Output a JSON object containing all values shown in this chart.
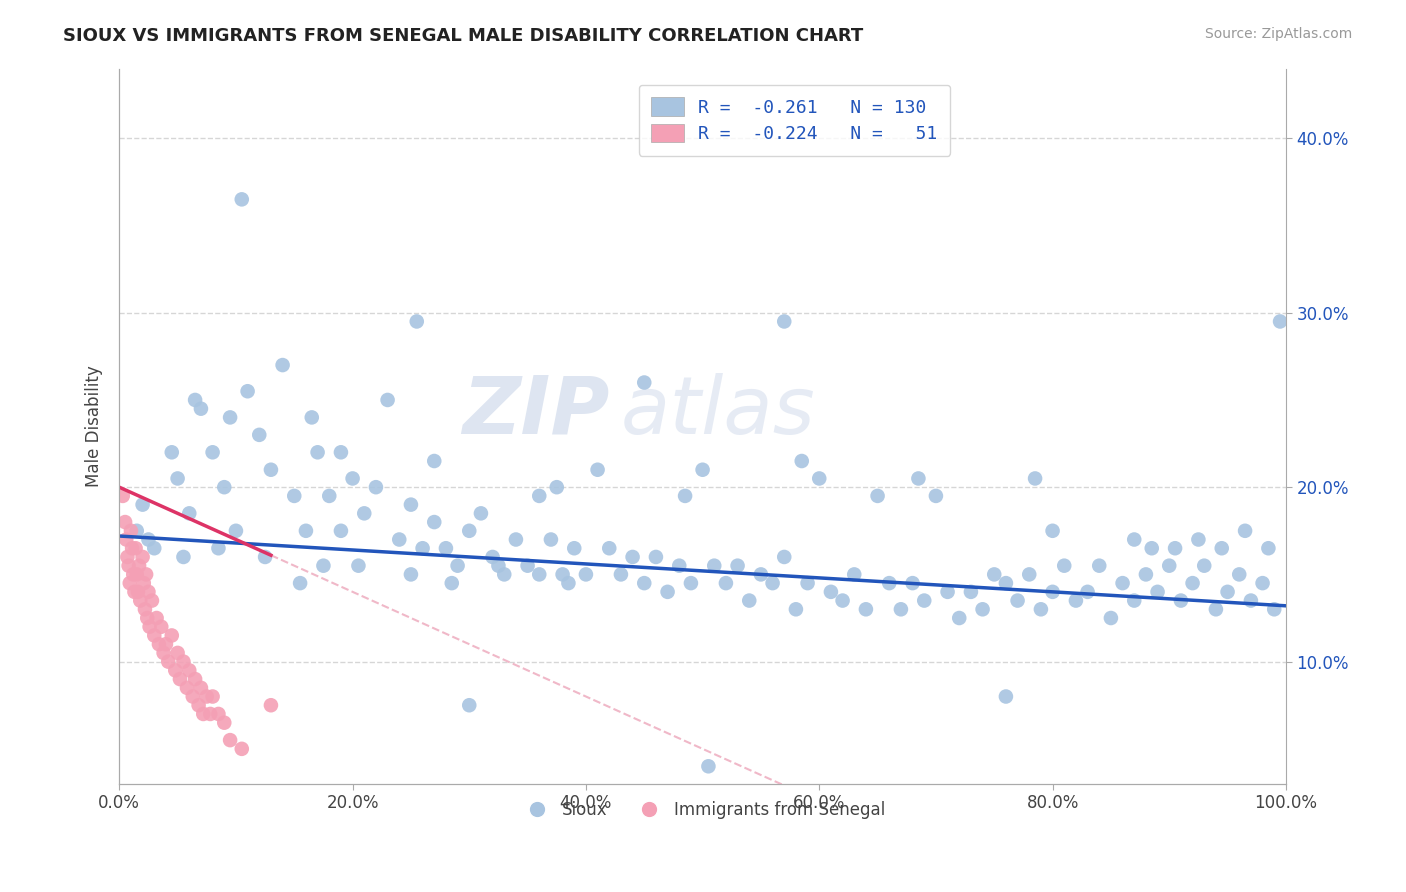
{
  "title": "SIOUX VS IMMIGRANTS FROM SENEGAL MALE DISABILITY CORRELATION CHART",
  "source": "Source: ZipAtlas.com",
  "ylabel": "Male Disability",
  "x_tick_labels": [
    "0.0%",
    "20.0%",
    "40.0%",
    "60.0%",
    "80.0%",
    "100.0%"
  ],
  "x_tick_vals": [
    0,
    20,
    40,
    60,
    80,
    100
  ],
  "y_tick_labels": [
    "10.0%",
    "20.0%",
    "30.0%",
    "40.0%"
  ],
  "y_tick_vals": [
    10,
    20,
    30,
    40
  ],
  "xlim": [
    0,
    100
  ],
  "ylim": [
    3,
    44
  ],
  "sioux_color": "#a8c4e0",
  "senegal_color": "#f4a0b5",
  "sioux_line_color": "#2255bb",
  "senegal_line_color": "#dd3366",
  "senegal_dash_color": "#f0b8c8",
  "legend_text_color": "#2255bb",
  "watermark_color": "#d5dff0",
  "background_color": "#ffffff",
  "grid_color": "#cccccc",
  "sioux_scatter": [
    [
      1.5,
      17.5
    ],
    [
      2.0,
      19.0
    ],
    [
      3.0,
      16.5
    ],
    [
      4.5,
      22.0
    ],
    [
      5.0,
      20.5
    ],
    [
      6.0,
      18.5
    ],
    [
      7.0,
      24.5
    ],
    [
      8.0,
      22.0
    ],
    [
      9.0,
      20.0
    ],
    [
      10.0,
      17.5
    ],
    [
      11.0,
      25.5
    ],
    [
      12.0,
      23.0
    ],
    [
      13.0,
      21.0
    ],
    [
      14.0,
      27.0
    ],
    [
      15.0,
      19.5
    ],
    [
      16.0,
      17.5
    ],
    [
      17.0,
      22.0
    ],
    [
      18.0,
      19.5
    ],
    [
      19.0,
      17.5
    ],
    [
      20.0,
      20.5
    ],
    [
      21.0,
      18.5
    ],
    [
      22.0,
      20.0
    ],
    [
      23.0,
      25.0
    ],
    [
      24.0,
      17.0
    ],
    [
      25.0,
      19.0
    ],
    [
      26.0,
      16.5
    ],
    [
      27.0,
      18.0
    ],
    [
      28.0,
      16.5
    ],
    [
      29.0,
      15.5
    ],
    [
      30.0,
      17.5
    ],
    [
      31.0,
      18.5
    ],
    [
      32.0,
      16.0
    ],
    [
      33.0,
      15.0
    ],
    [
      34.0,
      17.0
    ],
    [
      35.0,
      15.5
    ],
    [
      36.0,
      19.5
    ],
    [
      37.0,
      17.0
    ],
    [
      38.0,
      15.0
    ],
    [
      39.0,
      16.5
    ],
    [
      40.0,
      15.0
    ],
    [
      41.0,
      21.0
    ],
    [
      42.0,
      16.5
    ],
    [
      43.0,
      15.0
    ],
    [
      44.0,
      16.0
    ],
    [
      45.0,
      14.5
    ],
    [
      46.0,
      16.0
    ],
    [
      47.0,
      14.0
    ],
    [
      48.0,
      15.5
    ],
    [
      49.0,
      14.5
    ],
    [
      50.0,
      21.0
    ],
    [
      51.0,
      15.5
    ],
    [
      52.0,
      14.5
    ],
    [
      53.0,
      15.5
    ],
    [
      54.0,
      13.5
    ],
    [
      55.0,
      15.0
    ],
    [
      56.0,
      14.5
    ],
    [
      57.0,
      16.0
    ],
    [
      58.0,
      13.0
    ],
    [
      59.0,
      14.5
    ],
    [
      60.0,
      20.5
    ],
    [
      61.0,
      14.0
    ],
    [
      62.0,
      13.5
    ],
    [
      63.0,
      15.0
    ],
    [
      64.0,
      13.0
    ],
    [
      65.0,
      19.5
    ],
    [
      66.0,
      14.5
    ],
    [
      67.0,
      13.0
    ],
    [
      68.0,
      14.5
    ],
    [
      69.0,
      13.5
    ],
    [
      70.0,
      19.5
    ],
    [
      71.0,
      14.0
    ],
    [
      72.0,
      12.5
    ],
    [
      73.0,
      14.0
    ],
    [
      74.0,
      13.0
    ],
    [
      75.0,
      15.0
    ],
    [
      76.0,
      14.5
    ],
    [
      77.0,
      13.5
    ],
    [
      78.0,
      15.0
    ],
    [
      79.0,
      13.0
    ],
    [
      80.0,
      14.0
    ],
    [
      81.0,
      15.5
    ],
    [
      82.0,
      13.5
    ],
    [
      83.0,
      14.0
    ],
    [
      84.0,
      15.5
    ],
    [
      85.0,
      12.5
    ],
    [
      86.0,
      14.5
    ],
    [
      87.0,
      13.5
    ],
    [
      88.0,
      15.0
    ],
    [
      89.0,
      14.0
    ],
    [
      90.0,
      15.5
    ],
    [
      91.0,
      13.5
    ],
    [
      92.0,
      14.5
    ],
    [
      93.0,
      15.5
    ],
    [
      94.0,
      13.0
    ],
    [
      95.0,
      14.0
    ],
    [
      96.0,
      15.0
    ],
    [
      97.0,
      13.5
    ],
    [
      98.0,
      14.5
    ],
    [
      99.0,
      13.0
    ],
    [
      99.5,
      29.5
    ],
    [
      10.5,
      36.5
    ],
    [
      25.5,
      29.5
    ],
    [
      45.0,
      26.0
    ],
    [
      57.0,
      29.5
    ],
    [
      6.5,
      25.0
    ],
    [
      9.5,
      24.0
    ],
    [
      16.5,
      24.0
    ],
    [
      19.0,
      22.0
    ],
    [
      27.0,
      21.5
    ],
    [
      37.5,
      20.0
    ],
    [
      48.5,
      19.5
    ],
    [
      58.5,
      21.5
    ],
    [
      68.5,
      20.5
    ],
    [
      78.5,
      20.5
    ],
    [
      80.0,
      17.5
    ],
    [
      87.0,
      17.0
    ],
    [
      88.5,
      16.5
    ],
    [
      90.5,
      16.5
    ],
    [
      92.5,
      17.0
    ],
    [
      94.5,
      16.5
    ],
    [
      96.5,
      17.5
    ],
    [
      98.5,
      16.5
    ],
    [
      30.0,
      7.5
    ],
    [
      50.5,
      4.0
    ],
    [
      76.0,
      8.0
    ],
    [
      2.5,
      17.0
    ],
    [
      5.5,
      16.0
    ],
    [
      8.5,
      16.5
    ],
    [
      12.5,
      16.0
    ],
    [
      15.5,
      14.5
    ],
    [
      17.5,
      15.5
    ],
    [
      20.5,
      15.5
    ],
    [
      25.0,
      15.0
    ],
    [
      28.5,
      14.5
    ],
    [
      32.5,
      15.5
    ],
    [
      36.0,
      15.0
    ],
    [
      38.5,
      14.5
    ]
  ],
  "senegal_scatter": [
    [
      0.3,
      19.5
    ],
    [
      0.5,
      18.0
    ],
    [
      0.6,
      17.0
    ],
    [
      0.7,
      16.0
    ],
    [
      0.8,
      15.5
    ],
    [
      0.9,
      14.5
    ],
    [
      1.0,
      17.5
    ],
    [
      1.1,
      16.5
    ],
    [
      1.2,
      15.0
    ],
    [
      1.3,
      14.0
    ],
    [
      1.4,
      16.5
    ],
    [
      1.5,
      15.0
    ],
    [
      1.6,
      14.0
    ],
    [
      1.7,
      15.5
    ],
    [
      1.8,
      13.5
    ],
    [
      2.0,
      16.0
    ],
    [
      2.1,
      14.5
    ],
    [
      2.2,
      13.0
    ],
    [
      2.3,
      15.0
    ],
    [
      2.4,
      12.5
    ],
    [
      2.5,
      14.0
    ],
    [
      2.6,
      12.0
    ],
    [
      2.8,
      13.5
    ],
    [
      3.0,
      11.5
    ],
    [
      3.2,
      12.5
    ],
    [
      3.4,
      11.0
    ],
    [
      3.6,
      12.0
    ],
    [
      3.8,
      10.5
    ],
    [
      4.0,
      11.0
    ],
    [
      4.2,
      10.0
    ],
    [
      4.5,
      11.5
    ],
    [
      4.8,
      9.5
    ],
    [
      5.0,
      10.5
    ],
    [
      5.2,
      9.0
    ],
    [
      5.5,
      10.0
    ],
    [
      5.8,
      8.5
    ],
    [
      6.0,
      9.5
    ],
    [
      6.3,
      8.0
    ],
    [
      6.5,
      9.0
    ],
    [
      6.8,
      7.5
    ],
    [
      7.0,
      8.5
    ],
    [
      7.2,
      7.0
    ],
    [
      7.5,
      8.0
    ],
    [
      7.8,
      7.0
    ],
    [
      8.0,
      8.0
    ],
    [
      8.5,
      7.0
    ],
    [
      9.0,
      6.5
    ],
    [
      9.5,
      5.5
    ],
    [
      10.5,
      5.0
    ],
    [
      13.0,
      7.5
    ]
  ],
  "sioux_trendline": [
    0.0,
    100.0,
    17.2,
    13.2
  ],
  "senegal_solid_end": 13.0,
  "senegal_trendline": [
    0.0,
    100.0,
    20.0,
    -10.0
  ]
}
